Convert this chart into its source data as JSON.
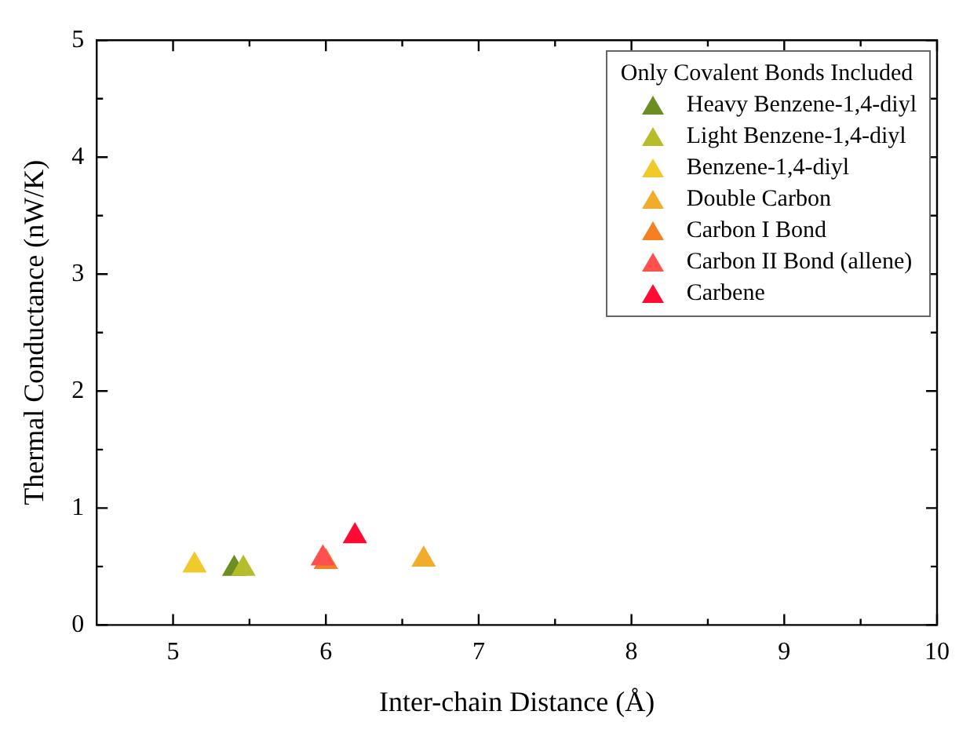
{
  "chart_data": {
    "type": "scatter",
    "xlabel": "Inter-chain Distance (Å)",
    "ylabel": "Thermal Conductance (nW/K)",
    "legend_title": "Only Covalent Bonds Included",
    "legend": "top right",
    "marker": "triangle",
    "grid": false,
    "xlim": [
      4.5,
      10
    ],
    "xticks": [
      5,
      {
        "value": 5.5,
        "label": null
      },
      6,
      {
        "value": 6.5,
        "label": null
      },
      7,
      {
        "value": 7.5,
        "label": null
      },
      8,
      {
        "value": 8.5,
        "label": null
      },
      9,
      {
        "value": 9.5,
        "label": null
      },
      10
    ],
    "ylim": [
      0,
      5
    ],
    "yticks": [
      0,
      {
        "value": 0.5,
        "label": null
      },
      1,
      {
        "value": 1.5,
        "label": null
      },
      2,
      {
        "value": 2.5,
        "label": null
      },
      3,
      {
        "value": 3.5,
        "label": null
      },
      4,
      {
        "value": 4.5,
        "label": null
      },
      5
    ],
    "series": [
      {
        "name": "Heavy Benzene-1,4-diyl",
        "color": "#6b8e23",
        "x": [
          5.4
        ],
        "values": [
          0.48
        ]
      },
      {
        "name": "Light Benzene-1,4-diyl",
        "color": "#b5bd2a",
        "x": [
          5.46
        ],
        "values": [
          0.48
        ]
      },
      {
        "name": "Benzene-1,4-diyl",
        "color": "#f0c92a",
        "x": [
          5.14
        ],
        "values": [
          0.51
        ]
      },
      {
        "name": "Double Carbon",
        "color": "#f0ac2a",
        "x": [
          6.64
        ],
        "values": [
          0.56
        ]
      },
      {
        "name": "Carbon I Bond",
        "color": "#f57f22",
        "x": [
          6.0
        ],
        "values": [
          0.54
        ]
      },
      {
        "name": "Carbon II Bond (allene)",
        "color": "#ff5050",
        "x": [
          5.98
        ],
        "values": [
          0.57
        ]
      },
      {
        "name": "Carbene",
        "color": "#ff0a32",
        "x": [
          6.19
        ],
        "values": [
          0.76
        ]
      }
    ]
  }
}
